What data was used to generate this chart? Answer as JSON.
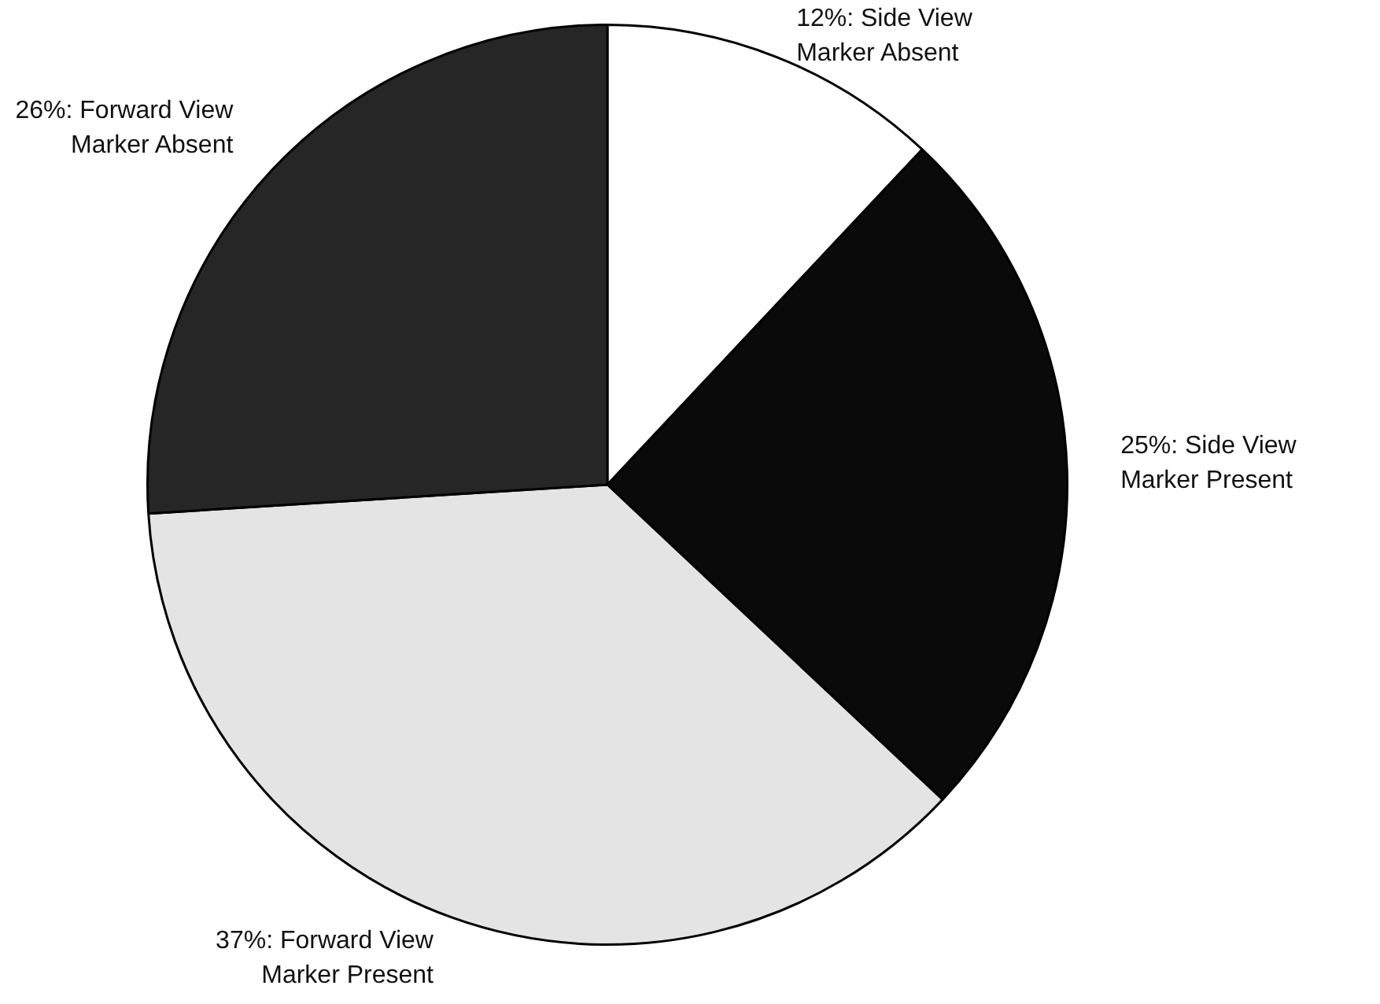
{
  "chart_data": {
    "type": "pie",
    "categories": [
      "Side View Marker Absent",
      "Side View Marker Present",
      "Forward View Marker Present",
      "Forward View Marker Absent"
    ],
    "values": [
      12,
      25,
      37,
      26
    ],
    "value_labels": [
      "12%",
      "25%",
      "37%",
      "26%"
    ],
    "colors": [
      "#ffffff",
      "#0a0a0a",
      "#e4e4e4",
      "#262626"
    ],
    "legend": false
  }
}
